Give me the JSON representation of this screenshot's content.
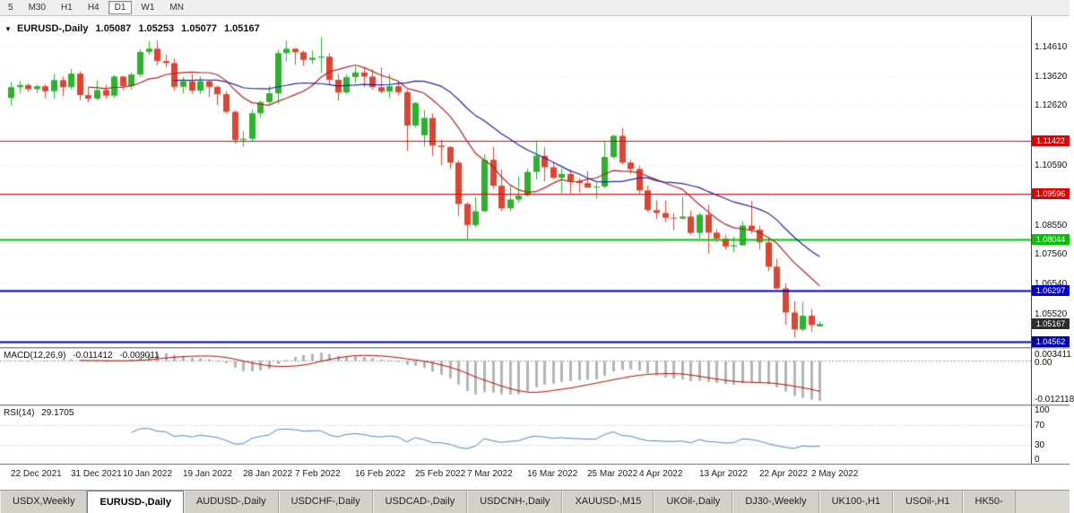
{
  "toolbar": {
    "buttons": [
      "5",
      "M30",
      "H1",
      "H4",
      "D1",
      "W1",
      "MN"
    ],
    "active": "D1"
  },
  "chart": {
    "dropdown_icon": "▼",
    "symbol": "EURUSD-,Daily",
    "ohlc": {
      "open": "1.05087",
      "high": "1.05253",
      "low": "1.05077",
      "close": "1.05167"
    },
    "y_ticks": [
      "1.14610",
      "1.13620",
      "1.12620",
      "1.10590",
      "1.08550",
      "1.07560",
      "1.06540",
      "1.05520"
    ],
    "levels": [
      {
        "price": "1.11422",
        "color": "#e00000",
        "width": 1
      },
      {
        "price": "1.09596",
        "color": "#e00000",
        "width": 1
      },
      {
        "price": "1.08044",
        "color": "#00c400",
        "width": 2
      },
      {
        "price": "1.06297",
        "color": "#0000d0",
        "width": 2
      },
      {
        "price": "1.04562",
        "color": "#0000b4",
        "width": 2
      }
    ],
    "current_price": {
      "value": "1.05167",
      "bg": "#2d2d2d"
    }
  },
  "chart_data": {
    "type": "candlestick",
    "title": "EURUSD-,Daily",
    "ylim": [
      1.0438,
      1.1566
    ],
    "up_color": "#2bb32b",
    "down_color": "#df4431",
    "x_ticks": [
      "22 Dec 2021",
      "31 Dec 2021",
      "10 Jan 2022",
      "19 Jan 2022",
      "28 Jan 2022",
      "7 Feb 2022",
      "16 Feb 2022",
      "25 Feb 2022",
      "7 Mar 2022",
      "16 Mar 2022",
      "25 Mar 2022",
      "4 Apr 2022",
      "13 Apr 2022",
      "22 Apr 2022",
      "2 May 2022"
    ],
    "overlays": [
      {
        "name": "ma-fast",
        "type": "sma",
        "period": 10,
        "color": "#b42222"
      },
      {
        "name": "ma-slow",
        "type": "sma",
        "period": 20,
        "color": "#2424a4"
      }
    ],
    "candles": [
      [
        "22 Dec 2021",
        1.1287,
        1.1342,
        1.1262,
        1.1324
      ],
      [
        "23 Dec 2021",
        1.1324,
        1.1344,
        1.1302,
        1.1331
      ],
      [
        "24 Dec 2021",
        1.1331,
        1.1337,
        1.1308,
        1.1317
      ],
      [
        "27 Dec 2021",
        1.1317,
        1.1333,
        1.1303,
        1.1327
      ],
      [
        "28 Dec 2021",
        1.1327,
        1.1334,
        1.1287,
        1.131
      ],
      [
        "29 Dec 2021",
        1.131,
        1.137,
        1.1285,
        1.1348
      ],
      [
        "30 Dec 2021",
        1.1348,
        1.136,
        1.1294,
        1.1324
      ],
      [
        "31 Dec 2021",
        1.1324,
        1.1386,
        1.1316,
        1.137
      ],
      [
        "3 Jan 2022",
        1.137,
        1.1379,
        1.1279,
        1.1297
      ],
      [
        "4 Jan 2022",
        1.1297,
        1.1323,
        1.1272,
        1.1285
      ],
      [
        "5 Jan 2022",
        1.1285,
        1.1347,
        1.128,
        1.1314
      ],
      [
        "6 Jan 2022",
        1.1314,
        1.1332,
        1.1285,
        1.1295
      ],
      [
        "7 Jan 2022",
        1.1295,
        1.1365,
        1.1288,
        1.136
      ],
      [
        "10 Jan 2022",
        1.136,
        1.1363,
        1.1313,
        1.1327
      ],
      [
        "11 Jan 2022",
        1.1327,
        1.1374,
        1.1315,
        1.1367
      ],
      [
        "12 Jan 2022",
        1.1367,
        1.1453,
        1.136,
        1.1444
      ],
      [
        "13 Jan 2022",
        1.1444,
        1.1481,
        1.1434,
        1.1455
      ],
      [
        "14 Jan 2022",
        1.1455,
        1.1483,
        1.1398,
        1.1413
      ],
      [
        "17 Jan 2022",
        1.1413,
        1.1435,
        1.1392,
        1.1406
      ],
      [
        "18 Jan 2022",
        1.1406,
        1.1422,
        1.1313,
        1.1325
      ],
      [
        "19 Jan 2022",
        1.1325,
        1.1358,
        1.1302,
        1.1343
      ],
      [
        "20 Jan 2022",
        1.1343,
        1.1369,
        1.1301,
        1.1312
      ],
      [
        "21 Jan 2022",
        1.1312,
        1.136,
        1.13,
        1.1344
      ],
      [
        "24 Jan 2022",
        1.1344,
        1.1349,
        1.129,
        1.1325
      ],
      [
        "25 Jan 2022",
        1.1325,
        1.133,
        1.1263,
        1.13
      ],
      [
        "26 Jan 2022",
        1.13,
        1.131,
        1.1235,
        1.124
      ],
      [
        "27 Jan 2022",
        1.124,
        1.1245,
        1.1131,
        1.1144
      ],
      [
        "28 Jan 2022",
        1.1144,
        1.1174,
        1.1121,
        1.1148
      ],
      [
        "31 Jan 2022",
        1.1148,
        1.1248,
        1.1141,
        1.1235
      ],
      [
        "1 Feb 2022",
        1.1235,
        1.1279,
        1.122,
        1.1273
      ],
      [
        "2 Feb 2022",
        1.1273,
        1.133,
        1.1266,
        1.1303
      ],
      [
        "3 Feb 2022",
        1.1303,
        1.1452,
        1.1266,
        1.144
      ],
      [
        "4 Feb 2022",
        1.144,
        1.1483,
        1.1411,
        1.1455
      ],
      [
        "7 Feb 2022",
        1.1455,
        1.1458,
        1.14,
        1.1443
      ],
      [
        "8 Feb 2022",
        1.1443,
        1.1449,
        1.1396,
        1.1417
      ],
      [
        "9 Feb 2022",
        1.1417,
        1.1448,
        1.1403,
        1.1424
      ],
      [
        "10 Feb 2022",
        1.1424,
        1.1495,
        1.1373,
        1.1428
      ],
      [
        "11 Feb 2022",
        1.1428,
        1.144,
        1.133,
        1.1349
      ],
      [
        "14 Feb 2022",
        1.1349,
        1.1369,
        1.1278,
        1.1306
      ],
      [
        "15 Feb 2022",
        1.1306,
        1.1369,
        1.13,
        1.1358
      ],
      [
        "16 Feb 2022",
        1.1358,
        1.1395,
        1.1338,
        1.1374
      ],
      [
        "17 Feb 2022",
        1.1374,
        1.1393,
        1.1324,
        1.136
      ],
      [
        "18 Feb 2022",
        1.136,
        1.1384,
        1.1315,
        1.1324
      ],
      [
        "21 Feb 2022",
        1.1324,
        1.1391,
        1.1303,
        1.1309
      ],
      [
        "22 Feb 2022",
        1.1309,
        1.1368,
        1.1287,
        1.1327
      ],
      [
        "23 Feb 2022",
        1.1327,
        1.1343,
        1.1296,
        1.1307
      ],
      [
        "24 Feb 2022",
        1.1307,
        1.1315,
        1.1106,
        1.1193
      ],
      [
        "25 Feb 2022",
        1.1193,
        1.1273,
        1.1185,
        1.127
      ],
      [
        "28 Feb 2022",
        1.116,
        1.1247,
        1.1121,
        1.1219
      ],
      [
        "1 Mar 2022",
        1.1219,
        1.1235,
        1.109,
        1.1125
      ],
      [
        "2 Mar 2022",
        1.1125,
        1.1145,
        1.1058,
        1.112
      ],
      [
        "3 Mar 2022",
        1.112,
        1.1123,
        1.1045,
        1.1067
      ],
      [
        "4 Mar 2022",
        1.1067,
        1.1075,
        1.0885,
        1.0926
      ],
      [
        "7 Mar 2022",
        1.0926,
        1.0932,
        1.0806,
        1.0854
      ],
      [
        "8 Mar 2022",
        1.0854,
        1.095,
        1.0846,
        1.0901
      ],
      [
        "9 Mar 2022",
        1.0901,
        1.1095,
        1.0899,
        1.1076
      ],
      [
        "10 Mar 2022",
        1.1076,
        1.1121,
        1.0977,
        1.0988
      ],
      [
        "11 Mar 2022",
        1.0988,
        1.1043,
        1.0901,
        1.0911
      ],
      [
        "14 Mar 2022",
        1.0911,
        1.099,
        1.09,
        1.0941
      ],
      [
        "15 Mar 2022",
        1.0941,
        1.102,
        1.093,
        1.0955
      ],
      [
        "16 Mar 2022",
        1.0955,
        1.1046,
        1.095,
        1.1035
      ],
      [
        "17 Mar 2022",
        1.1035,
        1.1137,
        1.1009,
        1.109
      ],
      [
        "18 Mar 2022",
        1.109,
        1.1119,
        1.1003,
        1.1051
      ],
      [
        "21 Mar 2022",
        1.1051,
        1.1069,
        1.101,
        1.1015
      ],
      [
        "22 Mar 2022",
        1.1015,
        1.1047,
        1.0963,
        1.1028
      ],
      [
        "23 Mar 2022",
        1.1028,
        1.1044,
        1.0963,
        1.1004
      ],
      [
        "24 Mar 2022",
        1.1004,
        1.1014,
        1.0965,
        1.0997
      ],
      [
        "25 Mar 2022",
        1.0997,
        1.1038,
        1.0981,
        1.0982
      ],
      [
        "28 Mar 2022",
        1.0982,
        1.0999,
        1.0944,
        1.0985
      ],
      [
        "29 Mar 2022",
        1.0985,
        1.1137,
        1.098,
        1.1086
      ],
      [
        "30 Mar 2022",
        1.1086,
        1.1163,
        1.108,
        1.1158
      ],
      [
        "31 Mar 2022",
        1.1158,
        1.1185,
        1.106,
        1.1067
      ],
      [
        "1 Apr 2022",
        1.1067,
        1.1077,
        1.1027,
        1.1045
      ],
      [
        "4 Apr 2022",
        1.1045,
        1.1056,
        1.096,
        1.0972
      ],
      [
        "5 Apr 2022",
        1.0972,
        1.099,
        1.0899,
        1.0905
      ],
      [
        "6 Apr 2022",
        1.0905,
        1.0939,
        1.0874,
        1.0895
      ],
      [
        "7 Apr 2022",
        1.0895,
        1.0938,
        1.0863,
        1.0879
      ],
      [
        "8 Apr 2022",
        1.0879,
        1.0895,
        1.0836,
        1.0876
      ],
      [
        "11 Apr 2022",
        1.0876,
        1.095,
        1.0872,
        1.0883
      ],
      [
        "12 Apr 2022",
        1.0883,
        1.0904,
        1.0821,
        1.0827
      ],
      [
        "13 Apr 2022",
        1.0827,
        1.0896,
        1.0808,
        1.0889
      ],
      [
        "14 Apr 2022",
        1.0889,
        1.0923,
        1.0757,
        1.0828
      ],
      [
        "15 Apr 2022",
        1.0828,
        1.084,
        1.0795,
        1.0808
      ],
      [
        "18 Apr 2022",
        1.0808,
        1.0821,
        1.077,
        1.0781
      ],
      [
        "19 Apr 2022",
        1.0781,
        1.0815,
        1.0761,
        1.0785
      ],
      [
        "20 Apr 2022",
        1.0785,
        1.0867,
        1.0783,
        1.0852
      ],
      [
        "21 Apr 2022",
        1.0852,
        1.0936,
        1.0824,
        1.0838
      ],
      [
        "22 Apr 2022",
        1.0838,
        1.0852,
        1.077,
        1.0795
      ],
      [
        "25 Apr 2022",
        1.0795,
        1.0812,
        1.0697,
        1.0712
      ],
      [
        "26 Apr 2022",
        1.0712,
        1.0738,
        1.0635,
        1.0638
      ],
      [
        "27 Apr 2022",
        1.0638,
        1.0655,
        1.0514,
        1.0556
      ],
      [
        "28 Apr 2022",
        1.0556,
        1.0594,
        1.047,
        1.0498
      ],
      [
        "29 Apr 2022",
        1.0498,
        1.0593,
        1.0492,
        1.0545
      ],
      [
        "2 May 2022",
        1.0545,
        1.0567,
        1.049,
        1.0513
      ],
      [
        "3 May 2022",
        1.05087,
        1.05253,
        1.05077,
        1.05167
      ]
    ]
  },
  "macd": {
    "title": "MACD(12,26,9)",
    "value": "-0.011412",
    "signal": "-0.009011",
    "params": [
      12,
      26,
      9
    ],
    "ticks": {
      "max": "0.003411",
      "zero": "0.00",
      "min": "-0.012118"
    },
    "histogram_color": "#b4b4b4",
    "signal_color": "#c00000"
  },
  "rsi": {
    "title": "RSI(14)",
    "value": "29.1705",
    "period": 14,
    "levels": [
      70,
      30
    ],
    "ticks": [
      "100",
      "70",
      "30",
      "0"
    ],
    "line_color": "#4a86c8"
  },
  "tabs": {
    "items": [
      "USDX,Weekly",
      "EURUSD-,Daily",
      "AUDUSD-,Daily",
      "USDCHF-,Daily",
      "USDCAD-,Daily",
      "USDCNH-,Daily",
      "XAUUSD-,M15",
      "UKOil-,Daily",
      "DJ30-,Weekly",
      "UK100-,H1",
      "USOil-,H1",
      "HK50-"
    ],
    "active_index": 1
  }
}
